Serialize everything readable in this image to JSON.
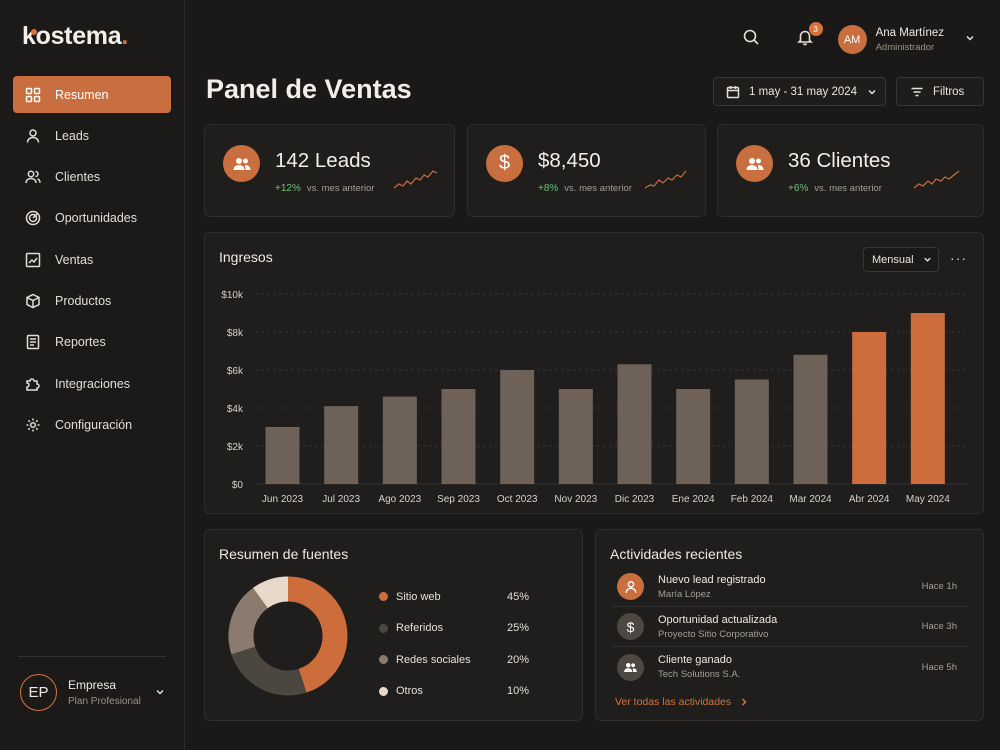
{
  "brand": {
    "name": "kostema",
    "dot": ".",
    "accent": "#d4733e"
  },
  "sidebar": {
    "items": [
      {
        "label": "Resumen",
        "icon": "grid-icon",
        "active": true
      },
      {
        "label": "Leads",
        "icon": "user-icon"
      },
      {
        "label": "Clientes",
        "icon": "users-icon"
      },
      {
        "label": "Oportunidades",
        "icon": "target-icon"
      },
      {
        "label": "Ventas",
        "icon": "chart-line-icon"
      },
      {
        "label": "Productos",
        "icon": "box-icon"
      },
      {
        "label": "Reportes",
        "icon": "report-icon"
      },
      {
        "label": "Integraciones",
        "icon": "puzzle-icon"
      },
      {
        "label": "Configuración",
        "icon": "gear-icon"
      }
    ],
    "company": {
      "initials": "EP",
      "name": "Empresa",
      "plan": "Plan Profesional"
    }
  },
  "header": {
    "notifications": "3",
    "user": {
      "initials": "AM",
      "name": "Ana Martínez",
      "role": "Administrador"
    },
    "title": "Panel de Ventas",
    "date_range": "1 may - 31 may 2024",
    "filter_label": "Filtros"
  },
  "kpis": [
    {
      "value": "142 Leads",
      "change": "+12%",
      "compare": "vs. mes anterior",
      "icon": "users-icon"
    },
    {
      "value": "$8,450",
      "change": "+8%",
      "compare": "vs. mes anterior",
      "icon": "dollar-icon"
    },
    {
      "value": "36 Clientes",
      "change": "+6%",
      "compare": "vs. mes anterior",
      "icon": "users-icon"
    }
  ],
  "revenue": {
    "title": "Ingresos",
    "period": "Mensual",
    "more": "···"
  },
  "chart_data": {
    "type": "bar",
    "title": "Ingresos",
    "categories": [
      "Jun 2023",
      "Jul 2023",
      "Ago 2023",
      "Sep 2023",
      "Oct 2023",
      "Nov 2023",
      "Dic 2023",
      "Ene 2024",
      "Feb 2024",
      "Mar 2024",
      "Abr 2024",
      "May 2024"
    ],
    "values": [
      3000,
      4100,
      4600,
      5000,
      6000,
      5000,
      6300,
      5000,
      5500,
      6800,
      8000,
      9000
    ],
    "highlight": [
      false,
      false,
      false,
      false,
      false,
      false,
      false,
      false,
      false,
      false,
      true,
      true
    ],
    "yticks": [
      "$0",
      "$2k",
      "$4k",
      "$6k",
      "$8k",
      "$10k"
    ],
    "ylim": [
      0,
      10000
    ],
    "grid": true,
    "colors": {
      "bar": "#6e6258",
      "highlight": "#cd6d3c"
    }
  },
  "sources": {
    "title": "Resumen de fuentes",
    "items": [
      {
        "label": "Sitio web",
        "pct": "45%",
        "value": 45,
        "color": "#cd6d3c"
      },
      {
        "label": "Referidos",
        "pct": "25%",
        "value": 25,
        "color": "#4b4640"
      },
      {
        "label": "Redes sociales",
        "pct": "20%",
        "value": 20,
        "color": "#8a7b6e"
      },
      {
        "label": "Otros",
        "pct": "10%",
        "value": 10,
        "color": "#e8d8c9"
      }
    ]
  },
  "activities": {
    "title": "Actividades recientes",
    "items": [
      {
        "title": "Nuevo lead registrado",
        "sub": "María López",
        "time": "Hace 1h",
        "icon": "user-icon",
        "color": "#c96e3f"
      },
      {
        "title": "Oportunidad actualizada",
        "sub": "Proyecto Sitio Corporativo",
        "time": "Hace 3h",
        "icon": "dollar-icon",
        "color": "#4e4843"
      },
      {
        "title": "Cliente ganado",
        "sub": "Tech Solutions S.A.",
        "time": "Hace 5h",
        "icon": "users-icon",
        "color": "#4e4843"
      }
    ],
    "see_all": "Ver todas las actividades"
  }
}
